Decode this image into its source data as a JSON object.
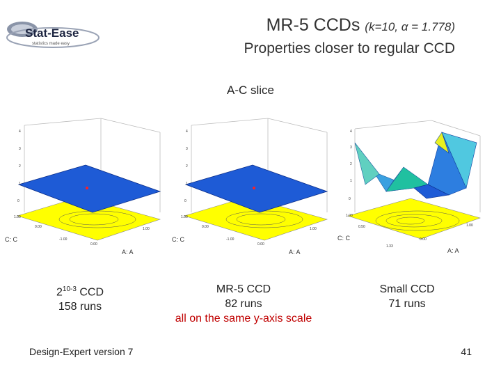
{
  "logo": {
    "text": "Stat-Ease",
    "tagline": "statistics made easy"
  },
  "header": {
    "title": "MR-5 CCDs",
    "params": "(k=10, α = 1.778)",
    "subtitle": "Properties closer to regular CCD"
  },
  "slice_label": "A-C slice",
  "plots": [
    {
      "axis_c": "C: C",
      "axis_a": "A: A",
      "surface": "flat"
    },
    {
      "axis_c": "C: C",
      "axis_a": "A: A",
      "surface": "flat"
    },
    {
      "axis_c": "C: C",
      "axis_a": "A: A",
      "surface": "peaked"
    }
  ],
  "captions": [
    {
      "base": "2",
      "exp": "10-3",
      "suffix": " CCD",
      "runs": "158 runs"
    },
    {
      "title": "MR-5 CCD",
      "runs": "82 runs",
      "note": "all on the same y-axis scale"
    },
    {
      "title": "Small CCD",
      "runs": "71 runs"
    }
  ],
  "footer": {
    "left": "Design-Expert version 7",
    "page_number": "41"
  },
  "colors": {
    "surface_blue": "#1e5bd6",
    "floor_yellow": "#ffff00",
    "accent_red": "#c00000"
  }
}
